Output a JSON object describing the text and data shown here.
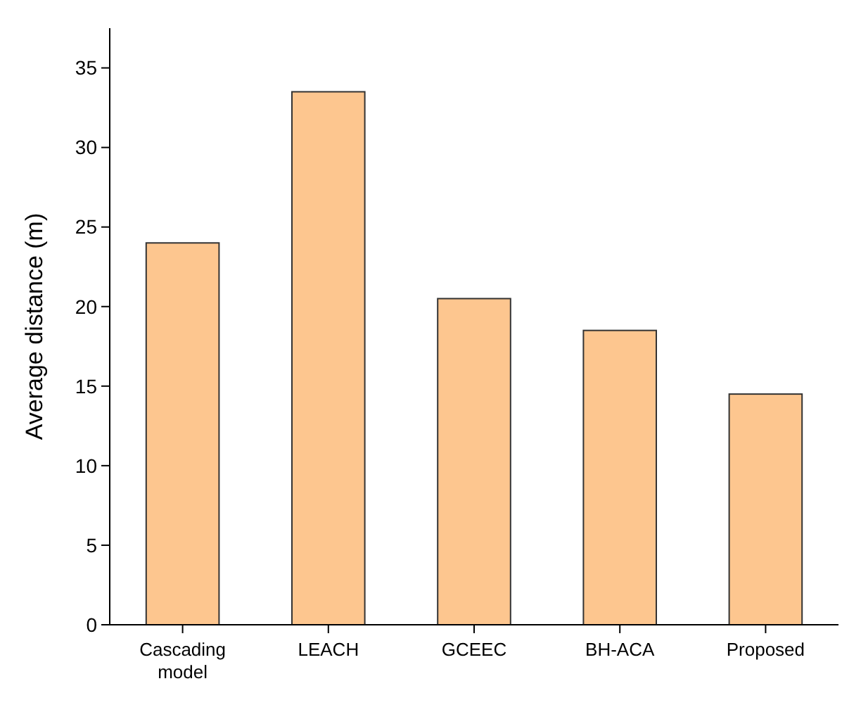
{
  "chart_data": {
    "type": "bar",
    "ylabel": "Average distance (m)",
    "categories": [
      "Cascading model",
      "LEACH",
      "GCEEC",
      "BH-ACA",
      "Proposed"
    ],
    "values": [
      24,
      33.5,
      20.5,
      18.5,
      14.5
    ],
    "color": "#fdc68f",
    "ylim": [
      0,
      37.5
    ],
    "yticks": [
      0,
      5,
      10,
      15,
      20,
      25,
      30,
      35
    ],
    "grid": false
  }
}
